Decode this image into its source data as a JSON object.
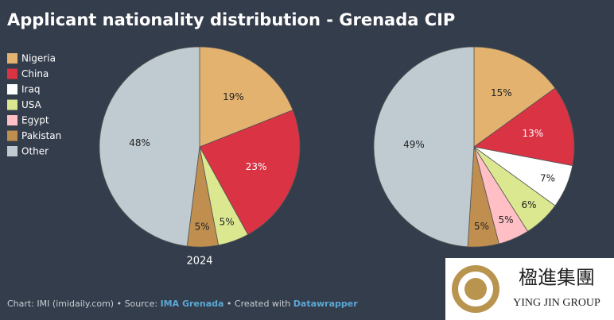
{
  "title": "Applicant nationality distribution - Grenada CIP",
  "chart_data": [
    {
      "type": "pie",
      "label": "2024",
      "categories": [
        "Nigeria",
        "China",
        "USA",
        "Pakistan",
        "Other"
      ],
      "values": [
        19,
        23,
        5,
        5,
        48
      ],
      "value_labels": [
        "19%",
        "23%",
        "5%",
        "5%",
        "48%"
      ],
      "colors": [
        "#e3b26f",
        "#d93344",
        "#dbe88f",
        "#c08e4e",
        "#bfcbd0"
      ]
    },
    {
      "type": "pie",
      "categories": [
        "Nigeria",
        "China",
        "Iraq",
        "USA",
        "Egypt",
        "Pakistan",
        "Other"
      ],
      "values": [
        15,
        13,
        7,
        6,
        5,
        5,
        49
      ],
      "value_labels": [
        "15%",
        "13%",
        "7%",
        "6%",
        "5%",
        "5%",
        "49%"
      ],
      "colors": [
        "#e3b26f",
        "#d93344",
        "#ffffff",
        "#dbe88f",
        "#ffbfc4",
        "#c08e4e",
        "#bfcbd0"
      ]
    }
  ],
  "footer": {
    "prefix": "Chart: IMI (imidaily.com) • Source: ",
    "source": "IMA Grenada",
    "middle": " • Created with ",
    "tool": "Datawrapper"
  },
  "logo": {
    "name": "楹進集團",
    "english": "YING JIN GROUP"
  }
}
